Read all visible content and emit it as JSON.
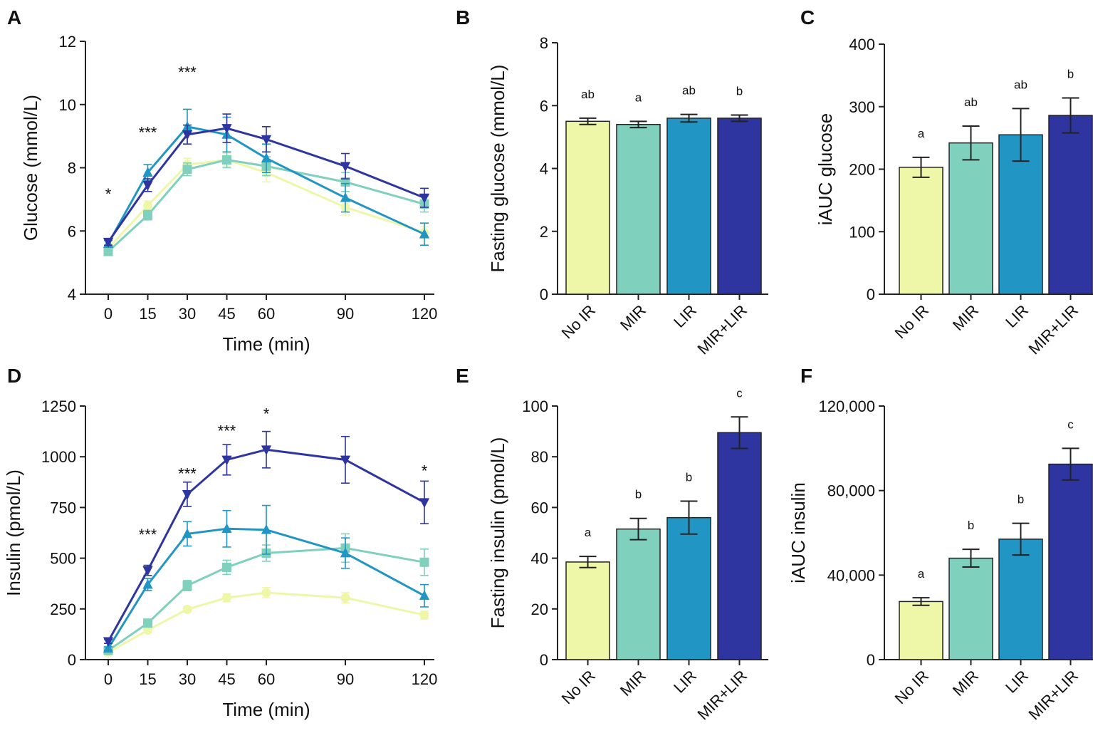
{
  "colors": {
    "No IR": "#eef7a8",
    "MIR": "#7fd0bc",
    "LIR": "#2196c4",
    "MIR+LIR": "#2e35a0"
  },
  "chart_data": [
    {
      "id": "A",
      "type": "line",
      "panel_label": "A",
      "xlabel": "Time (min)",
      "ylabel": "Glucose (mmol/L)",
      "x": [
        0,
        15,
        30,
        45,
        60,
        90,
        120
      ],
      "xticks": [
        0,
        15,
        30,
        45,
        60,
        90,
        120
      ],
      "ylim": [
        4,
        12
      ],
      "yticks": [
        4,
        6,
        8,
        10,
        12
      ],
      "series": [
        {
          "group": "No IR",
          "marker": "circle",
          "values": [
            5.45,
            6.8,
            8.1,
            8.25,
            7.85,
            6.75,
            5.95
          ],
          "errors": [
            0.1,
            0.15,
            0.2,
            0.2,
            0.3,
            0.25,
            0.2
          ]
        },
        {
          "group": "MIR",
          "marker": "square",
          "values": [
            5.35,
            6.5,
            7.95,
            8.25,
            8.05,
            7.55,
            6.85
          ],
          "errors": [
            0.1,
            0.15,
            0.2,
            0.25,
            0.3,
            0.3,
            0.25
          ]
        },
        {
          "group": "LIR",
          "marker": "triangle-up",
          "values": [
            5.6,
            7.85,
            9.3,
            9.05,
            8.3,
            7.05,
            5.9
          ],
          "errors": [
            0.1,
            0.25,
            0.55,
            0.55,
            0.45,
            0.45,
            0.35
          ]
        },
        {
          "group": "MIR+LIR",
          "marker": "triangle-down",
          "values": [
            5.65,
            7.45,
            9.05,
            9.25,
            8.9,
            8.05,
            7.05
          ],
          "errors": [
            0.1,
            0.2,
            0.3,
            0.45,
            0.4,
            0.4,
            0.3
          ]
        }
      ],
      "annotations": [
        {
          "x": 0,
          "y": 7.0,
          "text": "*"
        },
        {
          "x": 15,
          "y": 8.95,
          "text": "***"
        },
        {
          "x": 30,
          "y": 10.85,
          "text": "***"
        }
      ]
    },
    {
      "id": "B",
      "type": "bar",
      "panel_label": "B",
      "ylabel": "Fasting glucose (mmol/L)",
      "categories": [
        "No IR",
        "MIR",
        "LIR",
        "MIR+LIR"
      ],
      "values": [
        5.5,
        5.4,
        5.6,
        5.6
      ],
      "errors": [
        0.1,
        0.1,
        0.12,
        0.1
      ],
      "letters": [
        "ab",
        "a",
        "ab",
        "b"
      ],
      "ylim": [
        0,
        8
      ],
      "yticks": [
        0,
        2,
        4,
        6,
        8
      ]
    },
    {
      "id": "C",
      "type": "bar",
      "panel_label": "C",
      "ylabel": "iAUC glucose",
      "categories": [
        "No IR",
        "MIR",
        "LIR",
        "MIR+LIR"
      ],
      "values": [
        203,
        242,
        255,
        286
      ],
      "errors": [
        16,
        27,
        42,
        28
      ],
      "letters": [
        "a",
        "ab",
        "ab",
        "b"
      ],
      "ylim": [
        0,
        400
      ],
      "yticks": [
        0,
        100,
        200,
        300,
        400
      ]
    },
    {
      "id": "D",
      "type": "line",
      "panel_label": "D",
      "xlabel": "Time (min)",
      "ylabel": "Insulin (pmol/L)",
      "x": [
        0,
        15,
        30,
        45,
        60,
        90,
        120
      ],
      "xticks": [
        0,
        15,
        30,
        45,
        60,
        90,
        120
      ],
      "ylim": [
        0,
        1250
      ],
      "yticks": [
        0,
        250,
        500,
        750,
        1000,
        1250
      ],
      "series": [
        {
          "group": "No IR",
          "marker": "circle",
          "values": [
            35,
            145,
            248,
            305,
            330,
            305,
            220
          ],
          "errors": [
            5,
            12,
            12,
            20,
            25,
            25,
            20
          ]
        },
        {
          "group": "MIR",
          "marker": "square",
          "values": [
            45,
            180,
            365,
            455,
            525,
            550,
            480
          ],
          "errors": [
            8,
            15,
            25,
            35,
            40,
            70,
            65
          ]
        },
        {
          "group": "LIR",
          "marker": "triangle-up",
          "values": [
            55,
            370,
            620,
            645,
            640,
            525,
            315
          ],
          "errors": [
            8,
            30,
            60,
            90,
            120,
            75,
            55
          ]
        },
        {
          "group": "MIR+LIR",
          "marker": "triangle-down",
          "values": [
            90,
            440,
            815,
            985,
            1035,
            985,
            775
          ],
          "errors": [
            10,
            25,
            60,
            75,
            90,
            115,
            105
          ]
        }
      ],
      "annotations": [
        {
          "x": 15,
          "y": 590,
          "text": "***"
        },
        {
          "x": 30,
          "y": 890,
          "text": "***"
        },
        {
          "x": 45,
          "y": 1100,
          "text": "***"
        },
        {
          "x": 60,
          "y": 1185,
          "text": "*"
        },
        {
          "x": 120,
          "y": 905,
          "text": "*"
        }
      ]
    },
    {
      "id": "E",
      "type": "bar",
      "panel_label": "E",
      "ylabel": "Fasting insulin (pmol/L)",
      "categories": [
        "No IR",
        "MIR",
        "LIR",
        "MIR+LIR"
      ],
      "values": [
        38.5,
        51.5,
        56,
        89.5
      ],
      "errors": [
        2.2,
        4.2,
        6.5,
        6.2
      ],
      "letters": [
        "a",
        "b",
        "b",
        "c"
      ],
      "ylim": [
        0,
        100
      ],
      "yticks": [
        0,
        20,
        40,
        60,
        80,
        100
      ]
    },
    {
      "id": "F",
      "type": "bar",
      "panel_label": "F",
      "ylabel": "iAUC insulin",
      "categories": [
        "No IR",
        "MIR",
        "LIR",
        "MIR+LIR"
      ],
      "values": [
        27500,
        48000,
        57000,
        92500
      ],
      "errors": [
        1800,
        4200,
        7500,
        7500
      ],
      "letters": [
        "a",
        "b",
        "b",
        "c"
      ],
      "ylim": [
        0,
        120000
      ],
      "yticks": [
        0,
        40000,
        80000,
        120000
      ],
      "ytick_labels": [
        "0",
        "40,000",
        "80,000",
        "120,000"
      ]
    }
  ]
}
